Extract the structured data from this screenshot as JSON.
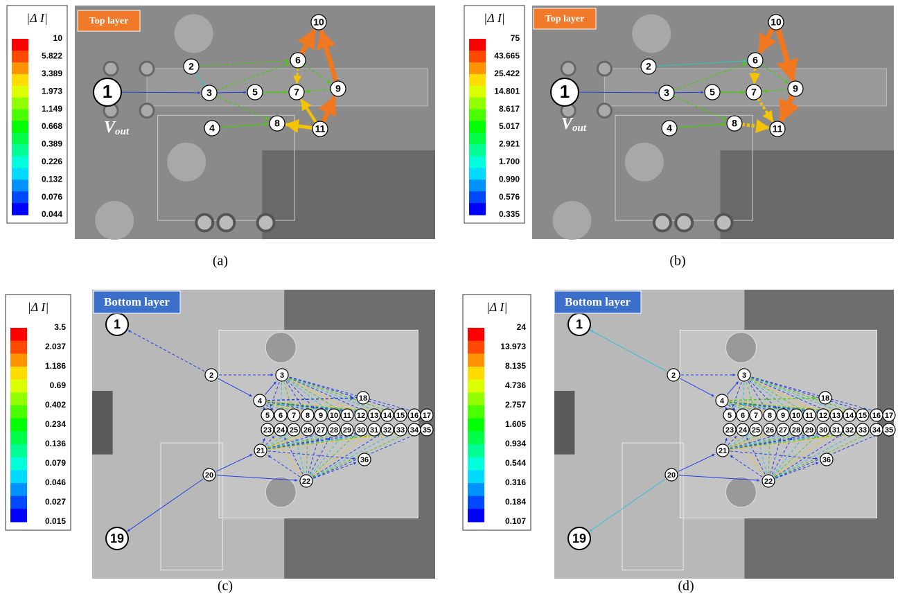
{
  "panels": [
    {
      "label": "(a)",
      "layer": "Top layer",
      "colorbar": {
        "title": "|Δ I|",
        "ticks": [
          "10",
          "5.822",
          "3.389",
          "1.973",
          "1.149",
          "0.668",
          "0.389",
          "0.226",
          "0.132",
          "0.076",
          "0.044"
        ]
      },
      "nodes": [
        "1",
        "2",
        "3",
        "4",
        "5",
        "6",
        "7",
        "8",
        "9",
        "10",
        "11"
      ],
      "vout": {
        "main": "V",
        "sub": "out"
      }
    },
    {
      "label": "(b)",
      "layer": "Top layer",
      "colorbar": {
        "title": "|Δ I|",
        "ticks": [
          "75",
          "43.665",
          "25.422",
          "14.801",
          "8.617",
          "5.017",
          "2.921",
          "1.700",
          "0.990",
          "0.576",
          "0.335"
        ]
      },
      "nodes": [
        "1",
        "2",
        "3",
        "4",
        "5",
        "6",
        "7",
        "8",
        "9",
        "10",
        "11"
      ],
      "vout": {
        "main": "V",
        "sub": "out"
      }
    },
    {
      "label": "(c)",
      "layer": "Bottom layer",
      "colorbar": {
        "title": "|Δ I|",
        "ticks": [
          "3.5",
          "2.037",
          "1.186",
          "0.69",
          "0.402",
          "0.234",
          "0.136",
          "0.079",
          "0.046",
          "0.027",
          "0.015"
        ]
      },
      "nodes": [
        "1",
        "2",
        "3",
        "4",
        "5",
        "6",
        "7",
        "8",
        "9",
        "10",
        "11",
        "12",
        "13",
        "14",
        "15",
        "16",
        "17",
        "18",
        "19",
        "20",
        "21",
        "22",
        "23",
        "24",
        "25",
        "26",
        "27",
        "28",
        "29",
        "30",
        "31",
        "32",
        "33",
        "34",
        "35",
        "36"
      ]
    },
    {
      "label": "(d)",
      "layer": "Bottom layer",
      "colorbar": {
        "title": "|Δ I|",
        "ticks": [
          "24",
          "13.973",
          "8.135",
          "4.736",
          "2.757",
          "1.605",
          "0.934",
          "0.544",
          "0.316",
          "0.184",
          "0.107"
        ]
      },
      "nodes": [
        "1",
        "2",
        "3",
        "4",
        "5",
        "6",
        "7",
        "8",
        "9",
        "10",
        "11",
        "12",
        "13",
        "14",
        "15",
        "16",
        "17",
        "18",
        "19",
        "20",
        "21",
        "22",
        "23",
        "24",
        "25",
        "26",
        "27",
        "28",
        "29",
        "30",
        "31",
        "32",
        "33",
        "34",
        "35",
        "36"
      ]
    }
  ]
}
